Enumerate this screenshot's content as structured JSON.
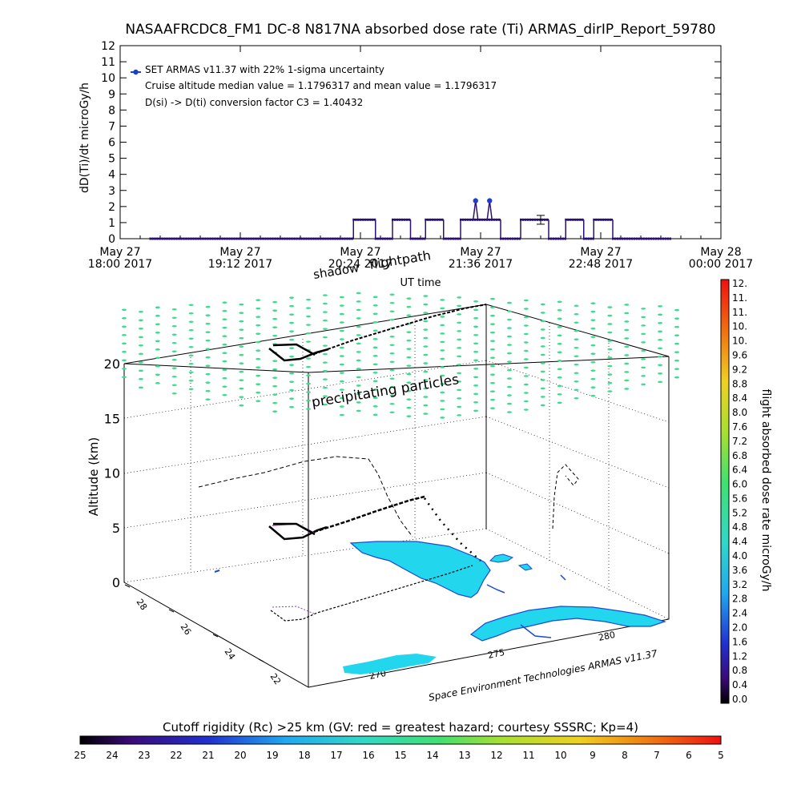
{
  "title": "NASAAFRCDC8_FM1 DC-8   N817NA absorbed dose rate (Ti) ARMAS_dirIP_Report_59780",
  "chart_data": [
    {
      "type": "scatter",
      "ylabel": "dD(Ti)/dt microGy/h",
      "xlabel": "UT time",
      "ylim": [
        0,
        12
      ],
      "yticks": [
        0,
        1,
        2,
        3,
        4,
        5,
        6,
        7,
        8,
        9,
        10,
        11,
        12
      ],
      "xlim_hours": [
        18.0,
        24.0
      ],
      "xticks": [
        {
          "hour": 18.0,
          "line1": "May 27",
          "line2": "18:00 2017"
        },
        {
          "hour": 19.2,
          "line1": "May 27",
          "line2": "19:12 2017"
        },
        {
          "hour": 20.4,
          "line1": "May 27",
          "line2": "20:24 2017"
        },
        {
          "hour": 21.6,
          "line1": "May 27",
          "line2": "21:36 2017"
        },
        {
          "hour": 22.8,
          "line1": "May 27",
          "line2": "22:48 2017"
        },
        {
          "hour": 24.0,
          "line1": "May 28",
          "line2": "00:00 2017"
        }
      ],
      "legend": [
        "SET ARMAS v11.37 with 22% 1-sigma uncertainty",
        "Cruise altitude median value = 1.1796317 and mean value = 1.1796317",
        "D(si) -> D(ti) conversion factor C3 = 1.40432"
      ],
      "series_color": "#2a1070",
      "segments": [
        {
          "hours": [
            18.3,
            20.33
          ],
          "value": 0
        },
        {
          "hours": [
            20.33,
            20.55
          ],
          "value": 1.18
        },
        {
          "hours": [
            20.55,
            20.72
          ],
          "value": 0
        },
        {
          "hours": [
            20.72,
            20.9
          ],
          "value": 1.18
        },
        {
          "hours": [
            20.9,
            21.05
          ],
          "value": 0
        },
        {
          "hours": [
            21.05,
            21.23
          ],
          "value": 1.18
        },
        {
          "hours": [
            21.23,
            21.4
          ],
          "value": 0
        },
        {
          "hours": [
            21.4,
            21.8
          ],
          "value": 1.18
        },
        {
          "hours": [
            21.8,
            22.0
          ],
          "value": 0
        },
        {
          "hours": [
            22.0,
            22.28
          ],
          "value": 1.18
        },
        {
          "hours": [
            22.28,
            22.45
          ],
          "value": 0
        },
        {
          "hours": [
            22.45,
            22.63
          ],
          "value": 1.18
        },
        {
          "hours": [
            22.63,
            22.73
          ],
          "value": 0
        },
        {
          "hours": [
            22.73,
            22.92
          ],
          "value": 1.18
        },
        {
          "hours": [
            22.92,
            23.5
          ],
          "value": 0
        }
      ],
      "peaks": [
        {
          "hour": 21.55,
          "value": 2.36
        },
        {
          "hour": 21.69,
          "value": 2.36
        }
      ],
      "error_bar": {
        "hour": 22.2,
        "low": 0.9,
        "high": 1.45
      },
      "legend_marker_color": "#1d3fd1"
    },
    {
      "type": "scatter",
      "title": "",
      "ylabel": "Altitude (km)",
      "zticks": [
        0,
        5,
        10,
        15,
        20
      ],
      "latitude_ticks": [
        "28",
        "26",
        "24",
        "22"
      ],
      "longitude_ticks": [
        "270",
        "275",
        "280"
      ],
      "annotations": [
        "shadow",
        "flightpath",
        "precipitating particles"
      ],
      "credit": "Space Environment Technologies ARMAS v11.37",
      "particle_color": "#3ddc8c"
    }
  ],
  "colorbar_right": {
    "label": "flight absorbed dose rate microGy/h",
    "ticks": [
      "12.",
      "11.",
      "11.",
      "10.",
      "10.",
      "9.6",
      "9.2",
      "8.8",
      "8.4",
      "8.0",
      "7.6",
      "7.2",
      "6.8",
      "6.4",
      "6.0",
      "5.6",
      "5.2",
      "4.8",
      "4.4",
      "4.0",
      "3.6",
      "3.2",
      "2.8",
      "2.4",
      "2.0",
      "1.6",
      "1.2",
      "0.8",
      "0.4",
      "0.0"
    ]
  },
  "colorbar_bottom": {
    "label": "Cutoff rigidity (Rc) >25 km (GV: red = greatest hazard; courtesy SSSRC; Kp=4)",
    "ticks": [
      "25",
      "24",
      "23",
      "22",
      "21",
      "20",
      "19",
      "18",
      "17",
      "16",
      "15",
      "14",
      "13",
      "12",
      "11",
      "10",
      "9",
      "8",
      "7",
      "6",
      "5"
    ]
  }
}
